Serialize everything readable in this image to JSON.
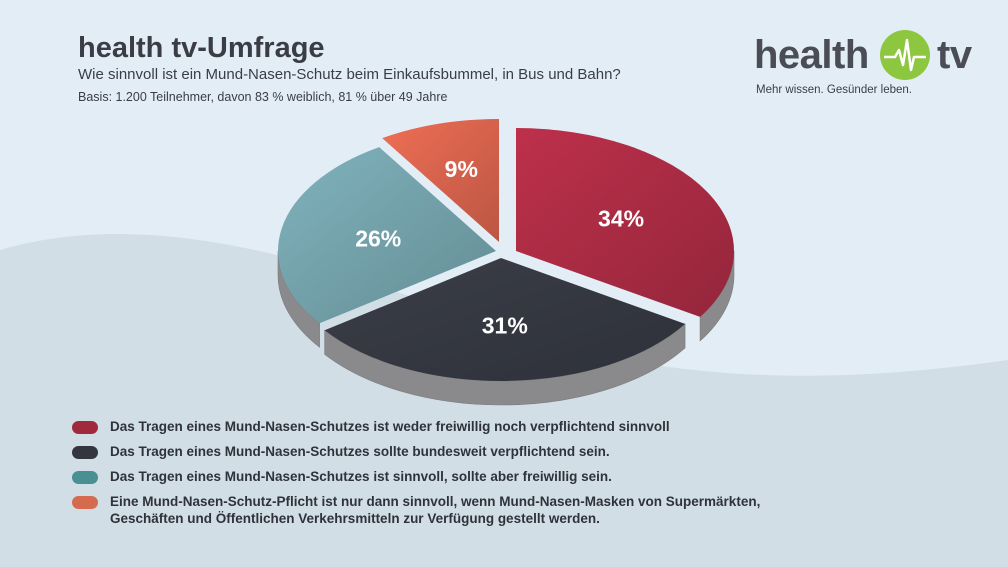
{
  "header": {
    "title": "health tv-Umfrage",
    "subtitle": "Wie sinnvoll ist ein Mund-Nasen-Schutz beim Einkaufsbummel, in Bus und Bahn?",
    "basis": "Basis: 1.200 Teilnehmer, davon 83 % weiblich, 81 % über 49 Jahre"
  },
  "logo": {
    "word_left": "health",
    "word_right": "tv",
    "tagline": "Mehr wissen. Gesünder leben.",
    "accent_color": "#8dc63f"
  },
  "chart_data": {
    "type": "pie",
    "style": "3d-exploded",
    "title": "",
    "slices": [
      {
        "value": 34,
        "label": "34%",
        "color": "#a42a41",
        "legend": "Das Tragen eines Mund-Nasen-Schutzes ist weder freiwillig noch verpflichtend sinnvoll"
      },
      {
        "value": 31,
        "label": "31%",
        "color": "#33363f",
        "legend": "Das Tragen eines Mund-Nasen-Schutzes sollte bundesweit verpflichtend sein."
      },
      {
        "value": 26,
        "label": "26%",
        "color": "#6f9ca4",
        "legend": "Das Tragen eines Mund-Nasen-Schutzes ist sinnvoll, sollte aber freiwillig sein."
      },
      {
        "value": 9,
        "label": "9%",
        "color": "#d0604a",
        "legend": "Eine Mund-Nasen-Schutz-Pflicht ist nur dann sinnvoll, wenn Mund-Nasen-Masken von Supermärkten,\nGeschäften und Öffentlichen Verkehrsmitteln zur Verfügung gestellt werden."
      }
    ],
    "legend_position": "bottom-left"
  },
  "legend_colors": [
    "#9e2a3c",
    "#33363f",
    "#4a8f91",
    "#d66a4f"
  ]
}
